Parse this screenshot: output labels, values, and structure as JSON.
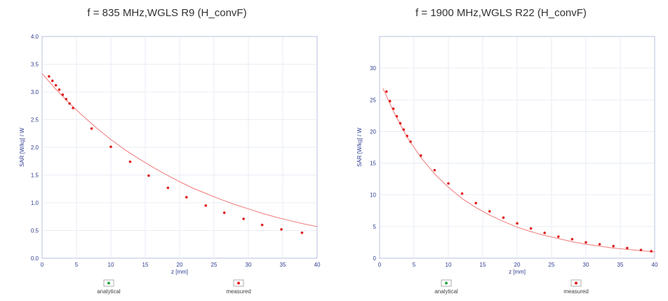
{
  "chart_data": [
    {
      "type": "line",
      "title": "f = 835 MHz,WGLS R9 (H_convF)",
      "xlabel": "z [mm]",
      "ylabel": "SAR [W/kg] / W",
      "xlim": [
        0,
        40
      ],
      "ylim": [
        0.0,
        4.0
      ],
      "xticks": [
        0,
        5,
        10,
        15,
        20,
        25,
        30,
        35,
        40
      ],
      "yticks": [
        0.0,
        0.5,
        1.0,
        1.5,
        2.0,
        2.5,
        3.0,
        3.5,
        4.0
      ],
      "ytick_labels": [
        "0.0",
        "0.5",
        "1.0",
        "1.5",
        "2.0",
        "2.5",
        "3.0",
        "3.5",
        "4.0"
      ],
      "grid": true,
      "legend": [
        "analytical",
        "measured"
      ],
      "series": [
        {
          "name": "analytical",
          "color": "#f07a7a",
          "x": [
            0,
            2,
            4,
            6,
            8,
            10,
            12,
            14,
            16,
            18,
            20,
            22,
            24,
            26,
            28,
            30,
            32,
            34,
            36,
            38,
            40
          ],
          "y": [
            3.33,
            3.05,
            2.79,
            2.56,
            2.34,
            2.14,
            1.96,
            1.8,
            1.65,
            1.51,
            1.38,
            1.26,
            1.16,
            1.06,
            0.97,
            0.89,
            0.81,
            0.74,
            0.68,
            0.62,
            0.57
          ]
        },
        {
          "name": "measured",
          "color": "#e0201f",
          "x": [
            1.0,
            1.5,
            2.0,
            2.5,
            3.0,
            3.5,
            4.0,
            4.5,
            7.2,
            10.0,
            12.8,
            15.5,
            18.3,
            21.0,
            23.8,
            26.5,
            29.3,
            32.0,
            34.8,
            37.8
          ],
          "y": [
            3.28,
            3.2,
            3.12,
            3.04,
            2.95,
            2.87,
            2.79,
            2.71,
            2.34,
            2.01,
            1.74,
            1.49,
            1.27,
            1.1,
            0.95,
            0.82,
            0.71,
            0.6,
            0.52,
            0.46
          ]
        }
      ]
    },
    {
      "type": "line",
      "title": "f = 1900 MHz,WGLS R22 (H_convF)",
      "xlabel": "z [mm]",
      "ylabel": "SAR [W/kg] / W",
      "xlim": [
        0,
        40
      ],
      "ylim": [
        0,
        35
      ],
      "xticks": [
        0,
        5,
        10,
        15,
        20,
        25,
        30,
        35,
        40
      ],
      "yticks": [
        0,
        5,
        10,
        15,
        20,
        25,
        30
      ],
      "ytick_labels": [
        "0",
        "5",
        "10",
        "15",
        "20",
        "25",
        "30"
      ],
      "grid": true,
      "legend": [
        "analytical",
        "measured"
      ],
      "series": [
        {
          "name": "analytical",
          "color": "#f07a7a",
          "x": [
            0.5,
            2,
            4,
            6,
            8,
            10,
            12,
            14,
            16,
            18,
            20,
            22,
            24,
            26,
            28,
            30,
            32,
            34,
            36,
            38,
            40
          ],
          "y": [
            26.8,
            23.2,
            19.1,
            15.9,
            13.3,
            11.2,
            9.4,
            8.0,
            6.8,
            5.8,
            4.9,
            4.2,
            3.6,
            3.1,
            2.6,
            2.2,
            1.9,
            1.6,
            1.4,
            1.2,
            1.0
          ]
        },
        {
          "name": "measured",
          "color": "#e0201f",
          "x": [
            1.0,
            1.5,
            2.0,
            2.5,
            3.0,
            3.5,
            4.0,
            4.5,
            6.0,
            8.0,
            10.0,
            12.0,
            14.0,
            16.0,
            18.0,
            20.0,
            22.0,
            24.0,
            26.0,
            28.0,
            30.0,
            32.0,
            34.0,
            36.0,
            38.0,
            39.5
          ],
          "y": [
            26.3,
            24.8,
            23.6,
            22.4,
            21.3,
            20.3,
            19.3,
            18.4,
            16.2,
            13.9,
            11.8,
            10.2,
            8.7,
            7.4,
            6.4,
            5.5,
            4.7,
            4.0,
            3.4,
            3.0,
            2.5,
            2.2,
            1.9,
            1.6,
            1.3,
            1.1
          ]
        }
      ]
    }
  ]
}
